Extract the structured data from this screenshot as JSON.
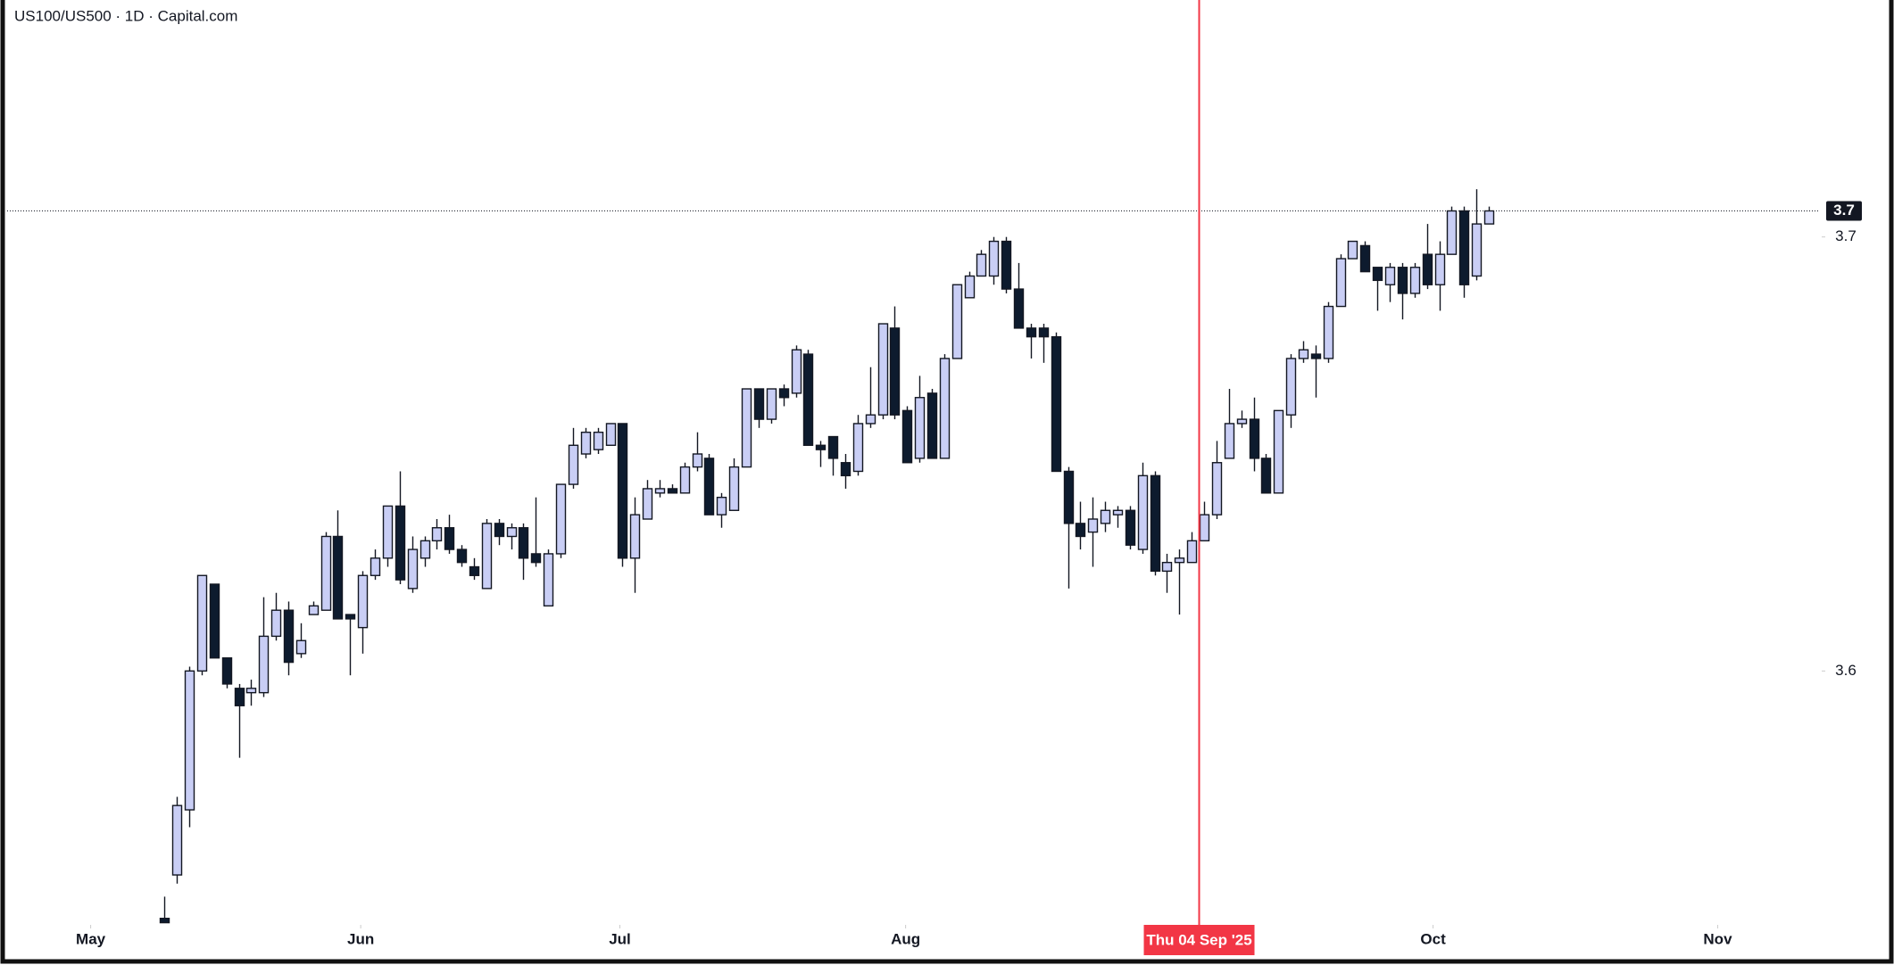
{
  "chart_data": {
    "type": "candlestick",
    "title": "US100/US500 · 1D · Capital.com",
    "open": [
      3.543,
      3.553,
      3.568,
      3.6,
      3.62,
      3.603,
      3.596,
      3.595,
      3.595,
      3.608,
      3.614,
      3.604,
      3.613,
      3.614,
      3.631,
      3.613,
      3.61,
      3.622,
      3.626,
      3.638,
      3.619,
      3.626,
      3.63,
      3.633,
      3.628,
      3.624,
      3.619,
      3.634,
      3.631,
      3.633,
      3.627,
      3.615,
      3.627,
      3.643,
      3.65,
      3.651,
      3.652,
      3.657,
      3.626,
      3.635,
      3.641,
      3.642,
      3.641,
      3.647,
      3.649,
      3.636,
      3.637,
      3.647,
      3.665,
      3.658,
      3.665,
      3.664,
      3.673,
      3.652,
      3.654,
      3.648,
      3.646,
      3.657,
      3.659,
      3.679,
      3.66,
      3.649,
      3.664,
      3.649,
      3.672,
      3.686,
      3.691,
      3.691,
      3.699,
      3.688,
      3.679,
      3.679,
      3.677,
      3.646,
      3.634,
      3.632,
      3.634,
      3.636,
      3.637,
      3.628,
      3.645,
      3.623,
      3.625,
      3.625,
      3.63,
      3.636,
      3.649,
      3.657,
      3.658,
      3.649,
      3.641,
      3.659,
      3.672,
      3.673,
      3.672,
      3.684,
      3.695,
      3.698,
      3.693,
      3.689,
      3.693,
      3.687,
      3.696,
      3.689,
      3.696,
      3.706,
      3.691,
      3.703
    ],
    "high": [
      3.548,
      3.571,
      3.601,
      3.622,
      3.62,
      3.603,
      3.597,
      3.598,
      3.617,
      3.618,
      3.616,
      3.611,
      3.616,
      3.632,
      3.637,
      3.613,
      3.623,
      3.628,
      3.638,
      3.646,
      3.631,
      3.631,
      3.635,
      3.636,
      3.629,
      3.626,
      3.635,
      3.635,
      3.634,
      3.634,
      3.64,
      3.628,
      3.643,
      3.656,
      3.656,
      3.656,
      3.657,
      3.657,
      3.64,
      3.644,
      3.644,
      3.643,
      3.648,
      3.655,
      3.65,
      3.641,
      3.649,
      3.665,
      3.665,
      3.665,
      3.666,
      3.675,
      3.674,
      3.653,
      3.654,
      3.65,
      3.659,
      3.67,
      3.68,
      3.684,
      3.661,
      3.668,
      3.665,
      3.673,
      3.689,
      3.692,
      3.697,
      3.7,
      3.7,
      3.694,
      3.68,
      3.68,
      3.678,
      3.647,
      3.639,
      3.64,
      3.639,
      3.638,
      3.638,
      3.648,
      3.646,
      3.627,
      3.628,
      3.632,
      3.639,
      3.653,
      3.665,
      3.66,
      3.663,
      3.65,
      3.66,
      3.673,
      3.676,
      3.675,
      3.685,
      3.696,
      3.699,
      3.699,
      3.693,
      3.694,
      3.694,
      3.694,
      3.703,
      3.699,
      3.707,
      3.707,
      3.711,
      3.707
    ],
    "low": [
      3.542,
      3.551,
      3.564,
      3.599,
      3.603,
      3.596,
      3.58,
      3.592,
      3.594,
      3.607,
      3.599,
      3.603,
      3.613,
      3.614,
      3.612,
      3.599,
      3.604,
      3.621,
      3.624,
      3.62,
      3.618,
      3.624,
      3.628,
      3.627,
      3.624,
      3.621,
      3.619,
      3.629,
      3.628,
      3.621,
      3.624,
      3.615,
      3.626,
      3.642,
      3.649,
      3.65,
      3.652,
      3.624,
      3.618,
      3.635,
      3.64,
      3.641,
      3.641,
      3.646,
      3.636,
      3.633,
      3.637,
      3.647,
      3.656,
      3.657,
      3.661,
      3.663,
      3.652,
      3.647,
      3.645,
      3.642,
      3.645,
      3.656,
      3.658,
      3.658,
      3.648,
      3.648,
      3.649,
      3.649,
      3.672,
      3.686,
      3.691,
      3.689,
      3.687,
      3.679,
      3.672,
      3.671,
      3.646,
      3.619,
      3.628,
      3.624,
      3.632,
      3.633,
      3.628,
      3.627,
      3.622,
      3.618,
      3.613,
      3.625,
      3.63,
      3.635,
      3.649,
      3.656,
      3.646,
      3.641,
      3.641,
      3.656,
      3.671,
      3.663,
      3.671,
      3.684,
      3.695,
      3.692,
      3.683,
      3.685,
      3.681,
      3.686,
      3.688,
      3.683,
      3.696,
      3.686,
      3.69,
      3.703
    ],
    "close": [
      3.542,
      3.569,
      3.6,
      3.622,
      3.603,
      3.597,
      3.592,
      3.596,
      3.608,
      3.614,
      3.602,
      3.607,
      3.615,
      3.631,
      3.612,
      3.612,
      3.622,
      3.626,
      3.638,
      3.621,
      3.628,
      3.63,
      3.633,
      3.628,
      3.625,
      3.622,
      3.634,
      3.631,
      3.633,
      3.626,
      3.625,
      3.627,
      3.643,
      3.652,
      3.655,
      3.655,
      3.657,
      3.626,
      3.636,
      3.642,
      3.642,
      3.641,
      3.647,
      3.65,
      3.636,
      3.64,
      3.647,
      3.665,
      3.658,
      3.665,
      3.663,
      3.674,
      3.652,
      3.651,
      3.649,
      3.645,
      3.657,
      3.659,
      3.68,
      3.659,
      3.648,
      3.663,
      3.649,
      3.672,
      3.689,
      3.691,
      3.696,
      3.699,
      3.688,
      3.679,
      3.677,
      3.677,
      3.646,
      3.634,
      3.631,
      3.635,
      3.637,
      3.637,
      3.629,
      3.645,
      3.623,
      3.625,
      3.626,
      3.63,
      3.636,
      3.648,
      3.657,
      3.658,
      3.649,
      3.641,
      3.66,
      3.672,
      3.674,
      3.672,
      3.684,
      3.695,
      3.699,
      3.692,
      3.69,
      3.693,
      3.687,
      3.693,
      3.689,
      3.696,
      3.706,
      3.689,
      3.703,
      3.706
    ],
    "up_color": "#c9cef5",
    "down_color": "#0d1b2e",
    "ylim": [
      3.5415,
      3.7546
    ],
    "yticks": [
      3.6,
      3.7
    ],
    "xlim": [
      -12.72,
      133.76
    ],
    "xticks": [
      {
        "value": -5.97,
        "label": "May"
      },
      {
        "value": 15.85,
        "label": "Jun"
      },
      {
        "value": 36.79,
        "label": "Jul"
      },
      {
        "value": 59.88,
        "label": "Aug"
      },
      {
        "value": 102.5,
        "label": "Oct"
      },
      {
        "value": 125.5,
        "label": "Nov"
      }
    ],
    "price_line": {
      "value": 3.706,
      "label": "3.7"
    },
    "crosshair": {
      "x": 83.6,
      "label": "Thu 04 Sep '25",
      "color": "#f23645"
    }
  }
}
